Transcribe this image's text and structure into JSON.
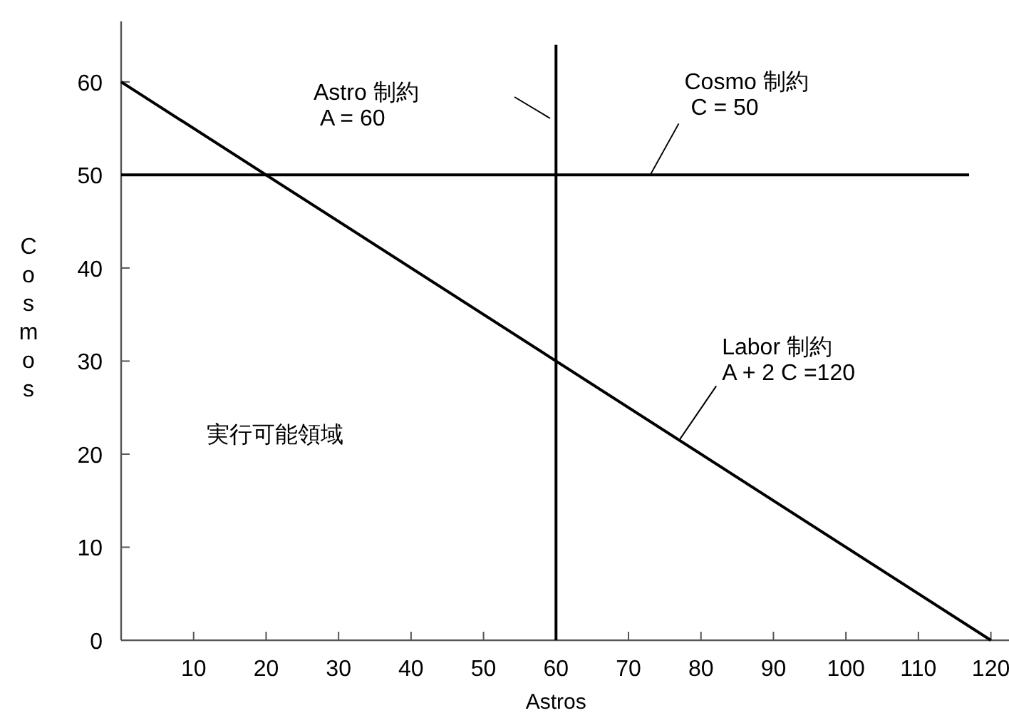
{
  "chart_data": {
    "type": "line",
    "xlabel": "Astros",
    "ylabel": "Cosmos",
    "xlim": [
      0,
      122.5
    ],
    "ylim": [
      0,
      66.5
    ],
    "xticks": [
      10,
      20,
      30,
      40,
      50,
      60,
      70,
      80,
      90,
      100,
      110,
      120
    ],
    "yticks": [
      0,
      10,
      20,
      30,
      40,
      50,
      60
    ],
    "series": [
      {
        "color": "#000000",
        "x": [
          0,
          120
        ],
        "values": [
          60,
          0
        ]
      },
      {
        "color": "#000000",
        "x": [
          0,
          117
        ],
        "values": [
          50,
          50
        ]
      },
      {
        "color": "#000000",
        "x": [
          60,
          60
        ],
        "values": [
          0,
          64
        ]
      }
    ],
    "annotations": [
      "Astro 制約\n A = 60",
      {
        "text": "Cosmo 制約\n C = 50",
        "x": 73,
        "y": 50
      },
      {
        "text": "Labor 制約\nA + 2 C =120",
        "x": 77,
        "y": 21.5
      },
      "実行可能領域"
    ],
    "grid": false,
    "marker": "none",
    "line_style": "solid"
  }
}
